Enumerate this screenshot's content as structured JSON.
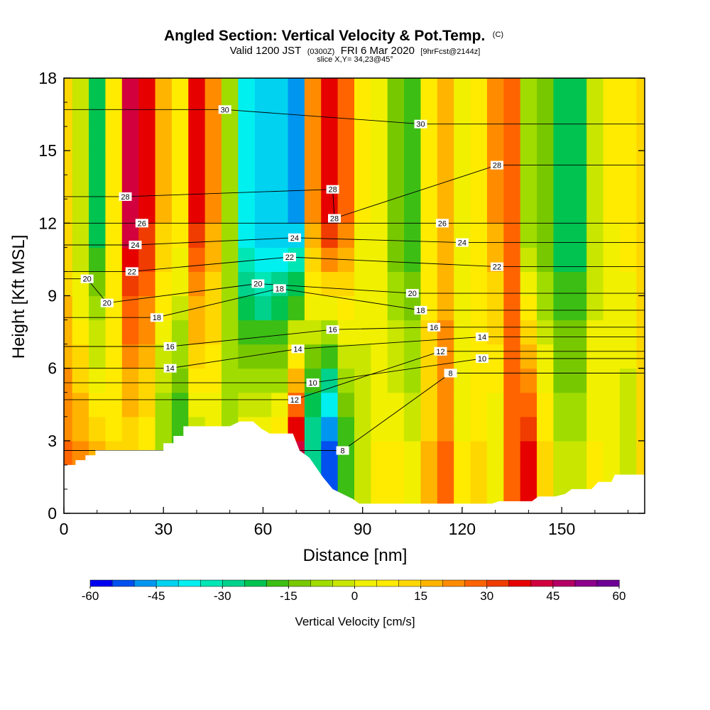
{
  "title": {
    "main": "Angled Section: Vertical Velocity & Pot.Temp.",
    "marker": "(C)",
    "valid_prefix": "Valid 1200 JST",
    "valid_utc": "(0300Z)",
    "valid_date": "FRI 6 Mar 2020",
    "forecast": "[9hrFcst@2144z]",
    "slice": "slice X,Y= 34,23@45°"
  },
  "chart_data": {
    "type": "heatmap",
    "xlabel": "Distance [nm]",
    "ylabel": "Height [Kft MSL]",
    "xlim": [
      0,
      175
    ],
    "ylim": [
      0,
      18
    ],
    "x_ticks": [
      0,
      30,
      60,
      90,
      120,
      150
    ],
    "y_ticks": [
      0,
      3,
      6,
      9,
      12,
      15,
      18
    ],
    "vertical_velocity_field": {
      "unit": "cm/s",
      "columns_x": [
        0,
        5,
        10,
        15,
        20,
        25,
        30,
        35,
        40,
        45,
        50,
        55,
        60,
        65,
        70,
        75,
        80,
        85,
        90,
        95,
        100,
        105,
        110,
        115,
        120,
        125,
        130,
        135,
        140,
        145,
        150,
        155,
        160,
        165,
        170,
        175
      ],
      "upper_level_values": [
        10,
        -5,
        -25,
        5,
        42,
        35,
        15,
        8,
        35,
        20,
        -10,
        -40,
        -45,
        -45,
        -50,
        20,
        38,
        25,
        5,
        0,
        -15,
        -20,
        5,
        15,
        0,
        5,
        20,
        25,
        -10,
        -15,
        -25,
        -25,
        -5,
        5,
        8,
        12
      ],
      "lower_level_values": [
        25,
        20,
        15,
        10,
        10,
        5,
        -10,
        -20,
        -5,
        0,
        -5,
        5,
        5,
        10,
        40,
        -30,
        -55,
        -20,
        -5,
        5,
        5,
        0,
        15,
        25,
        5,
        10,
        0,
        25,
        35,
        10,
        -5,
        -5,
        5,
        0,
        -5,
        10
      ]
    },
    "potential_temperature_labels": [
      {
        "x": 7,
        "y": 9.7,
        "value": 20
      },
      {
        "x": 18.5,
        "y": 13.1,
        "value": 28
      },
      {
        "x": 23.5,
        "y": 12.0,
        "value": 26
      },
      {
        "x": 21.5,
        "y": 11.1,
        "value": 24
      },
      {
        "x": 20.5,
        "y": 10.0,
        "value": 22
      },
      {
        "x": 13,
        "y": 8.7,
        "value": 20
      },
      {
        "x": 28,
        "y": 8.1,
        "value": 18
      },
      {
        "x": 32,
        "y": 6.9,
        "value": 16
      },
      {
        "x": 32,
        "y": 6.0,
        "value": 14
      },
      {
        "x": 48.5,
        "y": 16.7,
        "value": 30
      },
      {
        "x": 58.5,
        "y": 9.5,
        "value": 20
      },
      {
        "x": 65,
        "y": 9.3,
        "value": 18
      },
      {
        "x": 68,
        "y": 10.6,
        "value": 22
      },
      {
        "x": 69.5,
        "y": 11.4,
        "value": 24
      },
      {
        "x": 70.5,
        "y": 6.8,
        "value": 14
      },
      {
        "x": 75,
        "y": 5.4,
        "value": 10
      },
      {
        "x": 69.5,
        "y": 4.7,
        "value": 12
      },
      {
        "x": 81,
        "y": 13.4,
        "value": 28
      },
      {
        "x": 81.5,
        "y": 12.2,
        "value": 28
      },
      {
        "x": 81,
        "y": 7.6,
        "value": 16
      },
      {
        "x": 84,
        "y": 2.6,
        "value": 8
      },
      {
        "x": 105,
        "y": 9.1,
        "value": 20
      },
      {
        "x": 107.5,
        "y": 16.1,
        "value": 30
      },
      {
        "x": 107.5,
        "y": 8.4,
        "value": 18
      },
      {
        "x": 111.5,
        "y": 7.7,
        "value": 16
      },
      {
        "x": 113.5,
        "y": 6.7,
        "value": 12
      },
      {
        "x": 114,
        "y": 12.0,
        "value": 26
      },
      {
        "x": 120,
        "y": 11.2,
        "value": 24
      },
      {
        "x": 116.5,
        "y": 5.8,
        "value": 8
      },
      {
        "x": 130.5,
        "y": 14.4,
        "value": 28
      },
      {
        "x": 130.5,
        "y": 10.2,
        "value": 22
      },
      {
        "x": 126,
        "y": 7.3,
        "value": 14
      },
      {
        "x": 126,
        "y": 6.4,
        "value": 10
      }
    ],
    "terrain_height_kft": [
      [
        0,
        2.0
      ],
      [
        3.5,
        2.0
      ],
      [
        3.5,
        2.2
      ],
      [
        6.5,
        2.2
      ],
      [
        6.5,
        2.4
      ],
      [
        9.5,
        2.4
      ],
      [
        9.5,
        2.6
      ],
      [
        30,
        2.6
      ],
      [
        30,
        2.9
      ],
      [
        33,
        2.9
      ],
      [
        33,
        3.2
      ],
      [
        36,
        3.2
      ],
      [
        36,
        3.6
      ],
      [
        50,
        3.6
      ],
      [
        53,
        3.8
      ],
      [
        57,
        3.8
      ],
      [
        59.5,
        3.5
      ],
      [
        62,
        3.3
      ],
      [
        69,
        3.3
      ],
      [
        71,
        2.6
      ],
      [
        74,
        2.3
      ],
      [
        76,
        1.9
      ],
      [
        78,
        1.5
      ],
      [
        81,
        1.0
      ],
      [
        84,
        0.8
      ],
      [
        87,
        0.6
      ],
      [
        89,
        0.4
      ],
      [
        129,
        0.4
      ],
      [
        131,
        0.5
      ],
      [
        141,
        0.5
      ],
      [
        143,
        0.7
      ],
      [
        148,
        0.7
      ],
      [
        151,
        0.8
      ],
      [
        153,
        1.0
      ],
      [
        159,
        1.0
      ],
      [
        161,
        1.3
      ],
      [
        165,
        1.3
      ],
      [
        166,
        1.6
      ],
      [
        175,
        1.6
      ]
    ]
  },
  "colorbar": {
    "label": "Vertical Velocity [cm/s]",
    "ticks": [
      "-60",
      "-45",
      "-30",
      "-15",
      "0",
      "15",
      "30",
      "45",
      "60"
    ],
    "colors": [
      "#0000f0",
      "#0050f0",
      "#0096f0",
      "#00d2f0",
      "#00f0f0",
      "#00e6b4",
      "#00d28c",
      "#00c350",
      "#3cbe14",
      "#78c800",
      "#a0dc00",
      "#c8e600",
      "#f0f000",
      "#ffeb00",
      "#ffd700",
      "#ffb400",
      "#ff8c00",
      "#ff6400",
      "#f03c00",
      "#e60000",
      "#d2003c",
      "#b40064",
      "#8c008c",
      "#6e0096"
    ]
  }
}
